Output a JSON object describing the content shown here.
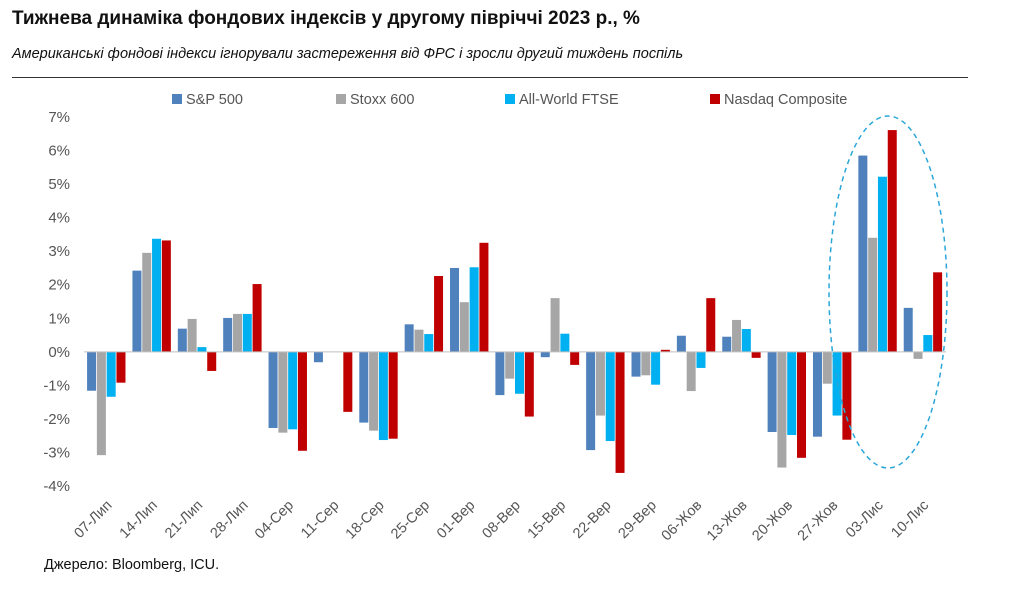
{
  "title": "Тижнева динаміка фондових індексів у другому півріччі 2023 р., %",
  "subtitle": "Американські фондові індекси ігнорували застереження від ФРС і зросли другий тиждень поспіль",
  "source": "Джерело: Bloomberg, ICU.",
  "colors": {
    "sp500": "#4f81bd",
    "stoxx": "#a6a6a6",
    "ftse": "#00b0f0",
    "nasdaq": "#c00000",
    "highlight": "#2aa7d8"
  },
  "chart_data": {
    "type": "bar",
    "title": "Тижнева динаміка фондових індексів у другому півріччі 2023 р., %",
    "xlabel": "",
    "ylabel": "",
    "ylim": [
      -4,
      7
    ],
    "yticks": [
      "7%",
      "6%",
      "5%",
      "4%",
      "3%",
      "2%",
      "1%",
      "0%",
      "-1%",
      "-2%",
      "-3%",
      "-4%"
    ],
    "ytick_values": [
      7,
      6,
      5,
      4,
      3,
      2,
      1,
      0,
      -1,
      -2,
      -3,
      -4
    ],
    "categories": [
      "07-Лип",
      "14-Лип",
      "21-Лип",
      "28-Лип",
      "04-Сер",
      "11-Сер",
      "18-Сер",
      "25-Сер",
      "01-Вер",
      "08-Вер",
      "15-Вер",
      "22-Вер",
      "29-Вер",
      "06-Жов",
      "13-Жов",
      "20-Жов",
      "27-Жов",
      "03-Лис",
      "10-Лис"
    ],
    "series": [
      {
        "name": "S&P 500",
        "key": "sp500",
        "values": [
          -1.16,
          2.42,
          0.69,
          1.01,
          -2.27,
          -0.31,
          -2.11,
          0.82,
          2.5,
          -1.29,
          -0.16,
          -2.93,
          -0.74,
          0.48,
          0.45,
          -2.39,
          -2.53,
          5.85,
          1.31
        ]
      },
      {
        "name": "Stoxx 600",
        "key": "stoxx",
        "values": [
          -3.08,
          2.95,
          0.98,
          1.13,
          -2.41,
          0.0,
          -2.35,
          0.66,
          1.48,
          -0.8,
          1.6,
          -1.9,
          -0.7,
          -1.17,
          0.95,
          -3.45,
          -0.95,
          3.4,
          -0.21
        ]
      },
      {
        "name": "All-World FTSE",
        "key": "ftse",
        "values": [
          -1.34,
          3.37,
          0.14,
          1.13,
          -2.31,
          0.0,
          -2.63,
          0.53,
          2.52,
          -1.25,
          0.54,
          -2.66,
          -0.98,
          -0.48,
          0.68,
          -2.48,
          -1.9,
          5.22,
          0.5
        ]
      },
      {
        "name": "Nasdaq Composite",
        "key": "nasdaq",
        "values": [
          -0.92,
          3.32,
          -0.57,
          2.02,
          -2.95,
          -1.79,
          -2.59,
          2.26,
          3.25,
          -1.93,
          -0.39,
          -3.61,
          0.06,
          1.6,
          -0.18,
          -3.16,
          -2.62,
          6.61,
          2.37
        ]
      }
    ],
    "legend_position": "top",
    "annotation": "dashed ellipse highlighting 03-Лис and 10-Лис"
  }
}
